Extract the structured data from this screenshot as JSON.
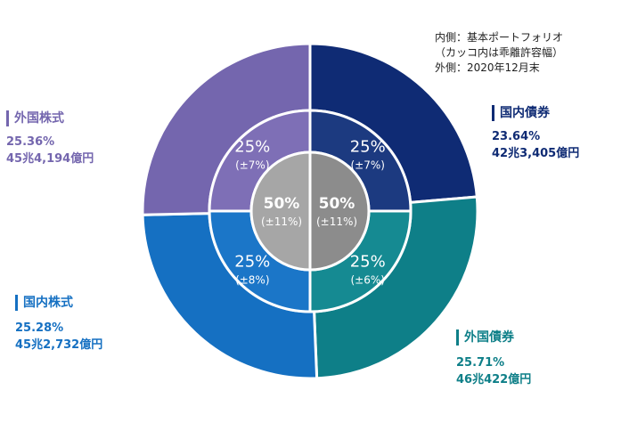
{
  "legend_note": {
    "inner": "内側：基本ポートフォリオ",
    "inner_sub": "（カッコ内は乖離許容幅）",
    "outer": "外側：2020年12月末"
  },
  "chart_data": {
    "type": "pie",
    "series": [
      {
        "ring": "center",
        "slices": [
          {
            "value": 50,
            "label": "50%",
            "band": "(±11%)",
            "color": "#8c8c8c"
          },
          {
            "value": 50,
            "label": "50%",
            "band": "(±11%)",
            "color": "#a6a6a6"
          }
        ]
      },
      {
        "ring": "inner",
        "slices": [
          {
            "category": "国内債券",
            "value": 25,
            "label": "25%",
            "band": "(±7%)",
            "color": "#1c3a80"
          },
          {
            "category": "外国債券",
            "value": 25,
            "label": "25%",
            "band": "(±6%)",
            "color": "#158a92"
          },
          {
            "category": "国内株式",
            "value": 25,
            "label": "25%",
            "band": "(±8%)",
            "color": "#1b76c8"
          },
          {
            "category": "外国株式",
            "value": 25,
            "label": "25%",
            "band": "(±7%)",
            "color": "#7e6fb6"
          }
        ]
      },
      {
        "ring": "outer",
        "slices": [
          {
            "category": "国内債券",
            "value": 23.64,
            "pct": "23.64%",
            "amount": "42兆3,405億円",
            "color": "#0f2b74"
          },
          {
            "category": "外国債券",
            "value": 25.71,
            "pct": "25.71%",
            "amount": "46兆422億円",
            "color": "#0e7f88"
          },
          {
            "category": "国内株式",
            "value": 25.28,
            "pct": "25.28%",
            "amount": "45兆2,732億円",
            "color": "#1570c2"
          },
          {
            "category": "外国株式",
            "value": 25.36,
            "pct": "25.36%",
            "amount": "45兆4,194億円",
            "color": "#7466ae"
          }
        ]
      }
    ]
  }
}
